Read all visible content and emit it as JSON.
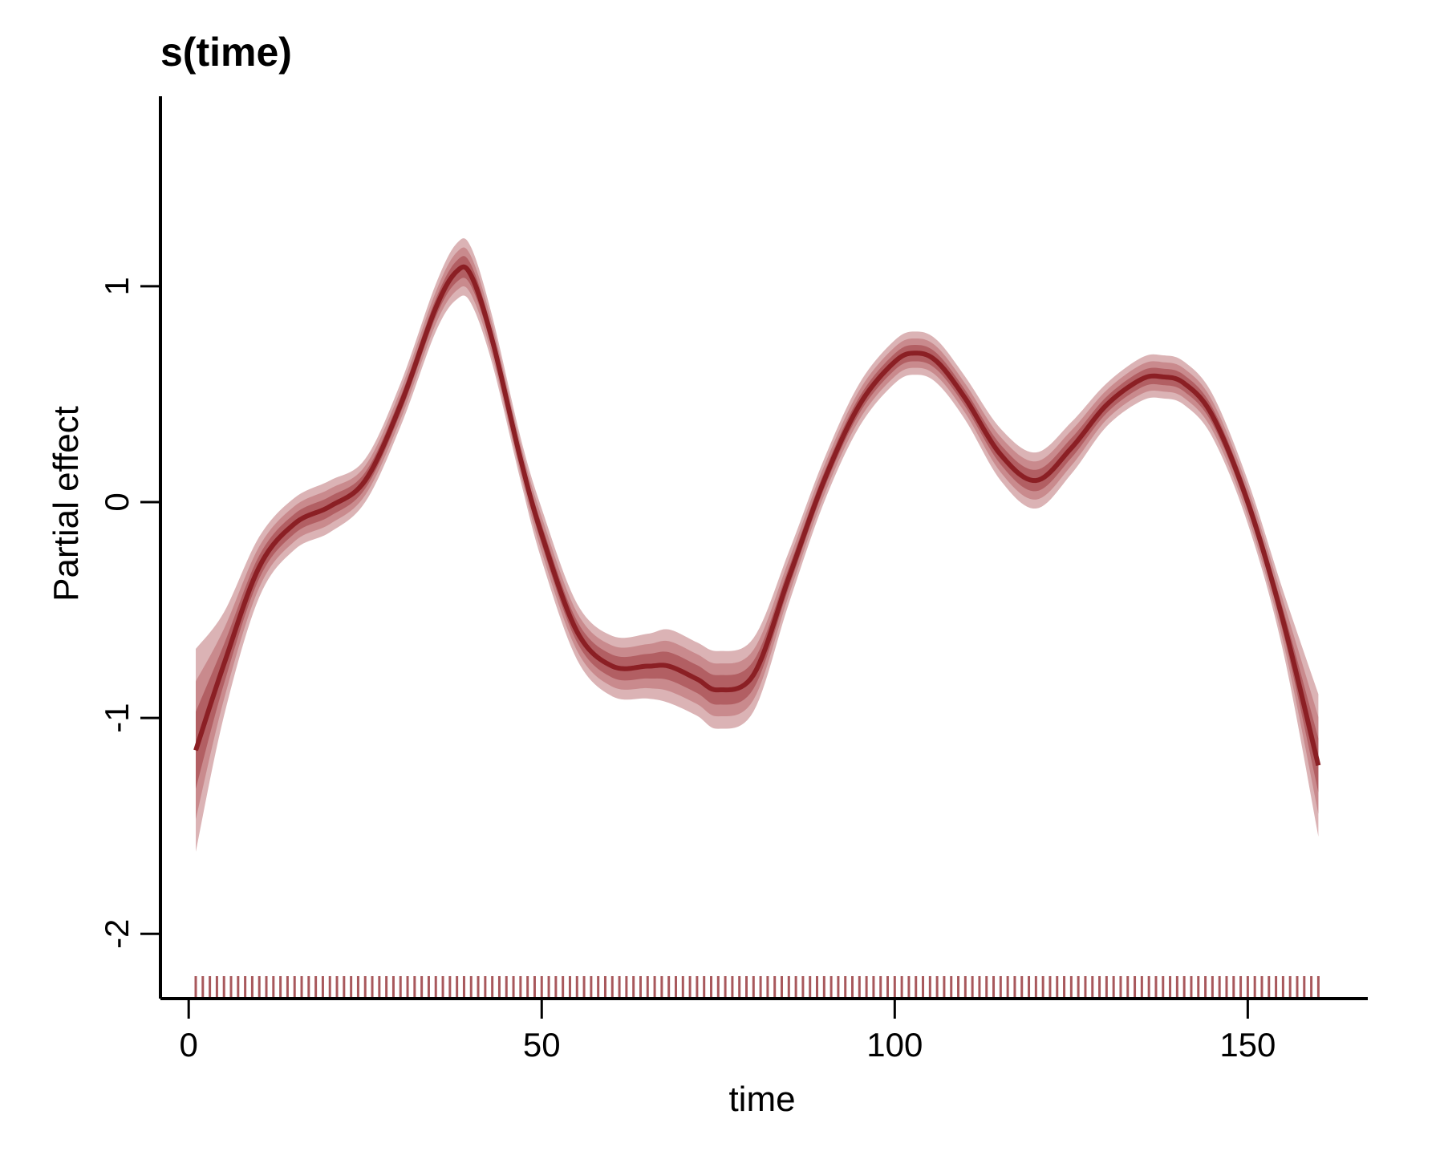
{
  "colors": {
    "line": "#8b1f24",
    "band_inner": "#b25f63",
    "band_mid": "#c98a8d",
    "band_outer": "#dbb3b5",
    "rug": "#a8585c",
    "axis": "#000000"
  },
  "chart_data": {
    "type": "line",
    "title": "s(time)",
    "xlabel": "time",
    "ylabel": "Partial effect",
    "xlim": [
      -4,
      167
    ],
    "ylim": [
      -2.3,
      1.88
    ],
    "x_ticks": [
      0,
      50,
      100,
      150
    ],
    "y_ticks": [
      -2,
      -1,
      0,
      1
    ],
    "x_tick_labels": [
      "0",
      "50",
      "100",
      "150"
    ],
    "y_tick_labels": [
      "-2",
      "-1",
      "0",
      "1"
    ],
    "rug_x_range": [
      1,
      160
    ],
    "rug_step": 1,
    "series": [
      {
        "x": [
          1,
          5,
          10,
          15,
          20,
          25,
          30,
          35,
          38,
          40,
          43,
          47,
          50,
          55,
          60,
          65,
          68,
          72,
          75,
          80,
          85,
          90,
          95,
          100,
          103,
          106,
          110,
          115,
          120,
          125,
          130,
          135,
          138,
          141,
          145,
          150,
          155,
          160
        ],
        "y": [
          -1.15,
          -0.75,
          -0.3,
          -0.1,
          -0.02,
          0.1,
          0.45,
          0.9,
          1.07,
          1.05,
          0.75,
          0.2,
          -0.15,
          -0.6,
          -0.76,
          -0.76,
          -0.76,
          -0.82,
          -0.87,
          -0.8,
          -0.35,
          0.1,
          0.45,
          0.65,
          0.69,
          0.65,
          0.48,
          0.22,
          0.1,
          0.25,
          0.45,
          0.57,
          0.58,
          0.55,
          0.4,
          0.0,
          -0.55,
          -1.22
        ],
        "band_outer": [
          0.47,
          0.24,
          0.14,
          0.12,
          0.12,
          0.1,
          0.1,
          0.11,
          0.13,
          0.13,
          0.11,
          0.1,
          0.12,
          0.13,
          0.14,
          0.15,
          0.17,
          0.17,
          0.18,
          0.17,
          0.12,
          0.1,
          0.1,
          0.1,
          0.1,
          0.1,
          0.1,
          0.12,
          0.13,
          0.12,
          0.1,
          0.1,
          0.1,
          0.1,
          0.1,
          0.1,
          0.14,
          0.33
        ]
      }
    ]
  }
}
